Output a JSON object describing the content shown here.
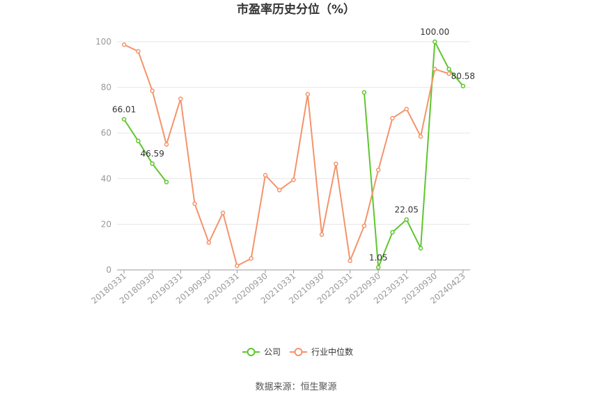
{
  "chart_data": {
    "type": "line",
    "title": "市盈率历史分位（%）",
    "xlabel": "",
    "ylabel": "",
    "ylim": [
      0,
      100
    ],
    "yticks": [
      "0",
      "20",
      "40",
      "60",
      "80",
      "100"
    ],
    "x_tick_labels": [
      "20180331",
      "20180930",
      "20190331",
      "20190930",
      "20200331",
      "20200930",
      "20210331",
      "20210930",
      "20220331",
      "20220930",
      "20230331",
      "20230930",
      "20240423"
    ],
    "grid": true,
    "legend_position": "bottom",
    "series": [
      {
        "name": "公司",
        "color": "#5fc52e",
        "values": [
          66.01,
          56.5,
          46.59,
          38.5,
          null,
          null,
          null,
          null,
          null,
          null,
          null,
          null,
          null,
          null,
          null,
          null,
          null,
          77.8,
          1.05,
          16.5,
          22.05,
          9.5,
          100.0,
          88.0,
          80.58
        ]
      },
      {
        "name": "行业中位数",
        "color": "#f4936a",
        "values": [
          98.7,
          95.8,
          78.5,
          55.0,
          75.0,
          29.0,
          12.0,
          25.0,
          1.8,
          5.0,
          41.5,
          35.0,
          39.5,
          77.0,
          15.5,
          46.5,
          4.0,
          19.3,
          43.8,
          66.5,
          70.5,
          58.5,
          88.0,
          86.0,
          null
        ]
      }
    ],
    "data_labels": [
      {
        "series": 0,
        "index": 0,
        "text": "66.01"
      },
      {
        "series": 0,
        "index": 2,
        "text": "46.59"
      },
      {
        "series": 0,
        "index": 18,
        "text": "1.05"
      },
      {
        "series": 0,
        "index": 20,
        "text": "22.05"
      },
      {
        "series": 0,
        "index": 22,
        "text": "100.00"
      },
      {
        "series": 0,
        "index": 24,
        "text": "80.58"
      }
    ]
  },
  "source_text": "数据来源：恒生聚源"
}
